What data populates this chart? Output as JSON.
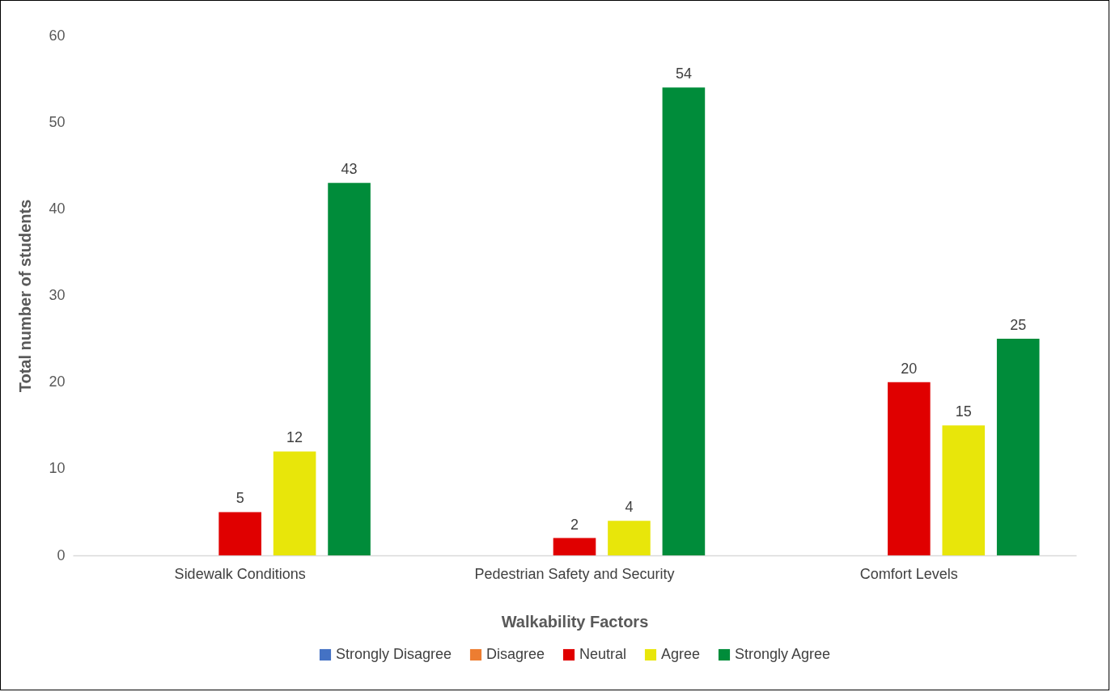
{
  "chart_data": {
    "type": "bar",
    "xlabel": "Walkability Factors",
    "ylabel": "Total number of students",
    "categories": [
      "Sidewalk Conditions",
      "Pedestrian Safety and Security",
      "Comfort Levels"
    ],
    "series": [
      {
        "name": "Strongly Disagree",
        "color": "#4472c4",
        "values": [
          0,
          0,
          0
        ],
        "value_labels": [
          null,
          null,
          null
        ]
      },
      {
        "name": "Disagree",
        "color": "#ed7d31",
        "values": [
          0,
          0,
          0
        ],
        "value_labels": [
          null,
          null,
          null
        ]
      },
      {
        "name": "Neutral",
        "color": "#e00000",
        "values": [
          5,
          2,
          20
        ],
        "value_labels": [
          "5",
          "2",
          "20"
        ]
      },
      {
        "name": "Agree",
        "color": "#e8e60a",
        "values": [
          12,
          4,
          15
        ],
        "value_labels": [
          "12",
          "4",
          "15"
        ]
      },
      {
        "name": "Strongly Agree",
        "color": "#008c3a",
        "values": [
          43,
          54,
          25
        ],
        "value_labels": [
          "43",
          "54",
          "25"
        ]
      }
    ],
    "ylim": [
      0,
      60
    ],
    "yticks": [
      0,
      10,
      20,
      30,
      40,
      50,
      60
    ],
    "grid": false,
    "legend": "bottom"
  }
}
